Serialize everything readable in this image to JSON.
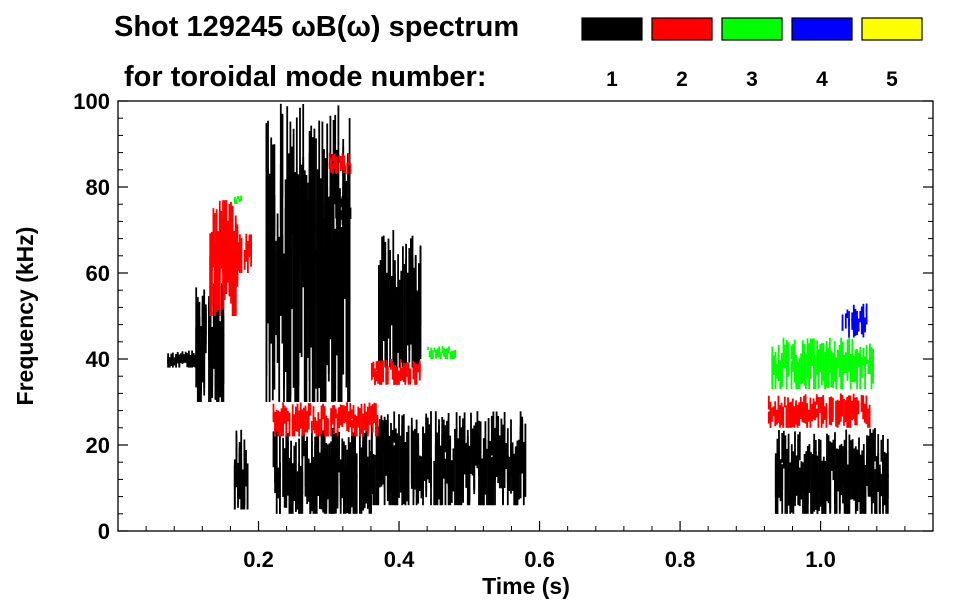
{
  "chart_data": {
    "type": "heatmap",
    "title_line1": "Shot 129245 ωB(ω) spectrum",
    "title_line2": "for toroidal mode number:",
    "xlabel": "Time (s)",
    "ylabel": "Frequency (kHz)",
    "xlim": [
      0.0,
      1.16
    ],
    "ylim": [
      0,
      100
    ],
    "x_ticks": [
      0.2,
      0.4,
      0.6,
      0.8,
      1.0
    ],
    "x_tick_labels": [
      "0.2",
      "0.4",
      "0.6",
      "0.8",
      "1.0"
    ],
    "y_ticks": [
      0,
      20,
      40,
      60,
      80,
      100
    ],
    "y_tick_labels": [
      "0",
      "20",
      "40",
      "60",
      "80",
      "100"
    ],
    "legend": [
      {
        "label": "1",
        "color": "#000000"
      },
      {
        "label": "2",
        "color": "#ff0000"
      },
      {
        "label": "3",
        "color": "#00ff00"
      },
      {
        "label": "4",
        "color": "#0000ff"
      },
      {
        "label": "5",
        "color": "#ffff00"
      }
    ],
    "regions": [
      {
        "mode": 1,
        "t": [
          0.07,
          0.11
        ],
        "f": [
          38,
          42
        ]
      },
      {
        "mode": 1,
        "t": [
          0.11,
          0.15
        ],
        "f": [
          30,
          58
        ]
      },
      {
        "mode": 1,
        "t": [
          0.165,
          0.185
        ],
        "f": [
          5,
          24
        ]
      },
      {
        "mode": 1,
        "t": [
          0.21,
          0.33
        ],
        "f": [
          30,
          100
        ]
      },
      {
        "mode": 1,
        "t": [
          0.22,
          0.36
        ],
        "f": [
          4,
          24
        ]
      },
      {
        "mode": 1,
        "t": [
          0.3,
          0.33
        ],
        "f": [
          70,
          78
        ]
      },
      {
        "mode": 1,
        "t": [
          0.36,
          0.58
        ],
        "f": [
          6,
          28
        ]
      },
      {
        "mode": 1,
        "t": [
          0.37,
          0.43
        ],
        "f": [
          38,
          70
        ]
      },
      {
        "mode": 1,
        "t": [
          0.935,
          1.095
        ],
        "f": [
          4,
          24
        ]
      },
      {
        "mode": 2,
        "t": [
          0.13,
          0.17
        ],
        "f": [
          50,
          77
        ]
      },
      {
        "mode": 2,
        "t": [
          0.17,
          0.19
        ],
        "f": [
          60,
          70
        ]
      },
      {
        "mode": 2,
        "t": [
          0.22,
          0.37
        ],
        "f": [
          22,
          30
        ]
      },
      {
        "mode": 2,
        "t": [
          0.3,
          0.33
        ],
        "f": [
          83,
          88
        ]
      },
      {
        "mode": 2,
        "t": [
          0.36,
          0.43
        ],
        "f": [
          34,
          40
        ]
      },
      {
        "mode": 2,
        "t": [
          0.925,
          1.07
        ],
        "f": [
          24,
          32
        ]
      },
      {
        "mode": 3,
        "t": [
          0.165,
          0.175
        ],
        "f": [
          76,
          78
        ]
      },
      {
        "mode": 3,
        "t": [
          0.44,
          0.48
        ],
        "f": [
          40,
          43
        ]
      },
      {
        "mode": 3,
        "t": [
          0.93,
          1.075
        ],
        "f": [
          33,
          45
        ]
      },
      {
        "mode": 4,
        "t": [
          1.03,
          1.065
        ],
        "f": [
          45,
          53
        ]
      }
    ]
  }
}
